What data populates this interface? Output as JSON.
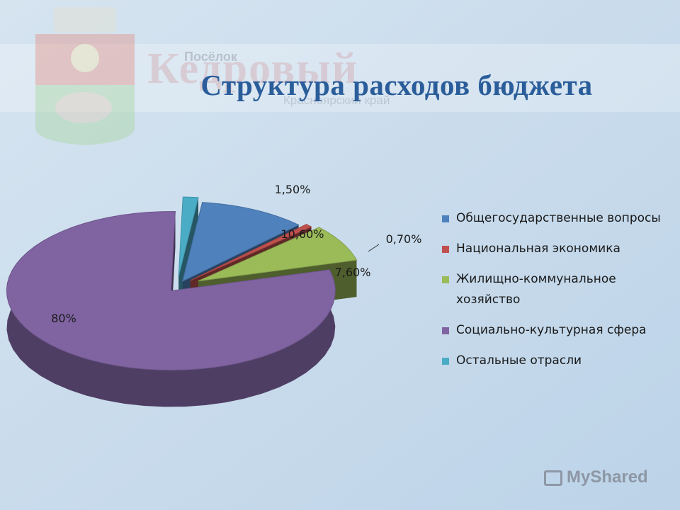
{
  "header": {
    "title": "Структура расходов бюджета",
    "watermark_small": "Посёлок",
    "watermark_big": "Кедровый",
    "watermark_sub": "Красноярский край"
  },
  "footer": {
    "logo_text": "MyShared"
  },
  "chart_data": {
    "type": "pie",
    "title": "",
    "legend_position": "right",
    "series": [
      {
        "name": "Общегосударственные вопросы",
        "value": 10.6,
        "label": "10,60%",
        "color": "#4f81bd"
      },
      {
        "name": "Национальная экономика",
        "value": 0.7,
        "label": "0,70%",
        "color": "#c0504d"
      },
      {
        "name": "Жилищно-коммунальное хозяйство",
        "value": 7.6,
        "label": "7,60%",
        "color": "#9bbb59"
      },
      {
        "name": "Социально-культурная сфера",
        "value": 80,
        "label": "80%",
        "color": "#8064a2"
      },
      {
        "name": "Остальные отрасли",
        "value": 1.5,
        "label": "1,50%",
        "color": "#4bacc6"
      }
    ]
  }
}
